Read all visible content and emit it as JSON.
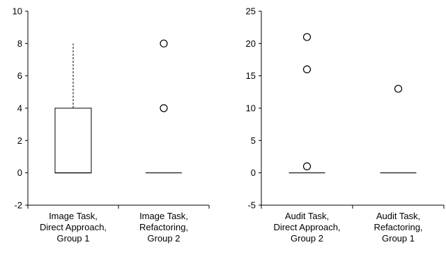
{
  "chart_data": [
    {
      "type": "box",
      "title": "",
      "xlabel": "",
      "ylabel": "",
      "ylim": [
        -2,
        10
      ],
      "yticks": [
        -2,
        0,
        2,
        4,
        6,
        8,
        10
      ],
      "categories": [
        [
          "Image Task,",
          "Direct Approach,",
          "Group 1"
        ],
        [
          "Image Task,",
          "Refactoring,",
          "Group 2"
        ]
      ],
      "boxes": [
        {
          "min": 0,
          "q1": 0,
          "median": 0,
          "q3": 4,
          "max": 8,
          "outliers": []
        },
        {
          "min": 0,
          "q1": 0,
          "median": 0,
          "q3": 0,
          "max": 0,
          "outliers": [
            4,
            8
          ]
        }
      ]
    },
    {
      "type": "box",
      "title": "",
      "xlabel": "",
      "ylabel": "",
      "ylim": [
        -5,
        25
      ],
      "yticks": [
        -5,
        0,
        5,
        10,
        15,
        20,
        25
      ],
      "categories": [
        [
          "Audit Task,",
          "Direct Approach,",
          "Group 2"
        ],
        [
          "Audit Task,",
          "Refactoring,",
          "Group 1"
        ]
      ],
      "boxes": [
        {
          "min": 0,
          "q1": 0,
          "median": 0,
          "q3": 0,
          "max": 0,
          "outliers": [
            1,
            16,
            21
          ]
        },
        {
          "min": 0,
          "q1": 0,
          "median": 0,
          "q3": 0,
          "max": 0,
          "outliers": [
            13
          ]
        }
      ]
    }
  ]
}
